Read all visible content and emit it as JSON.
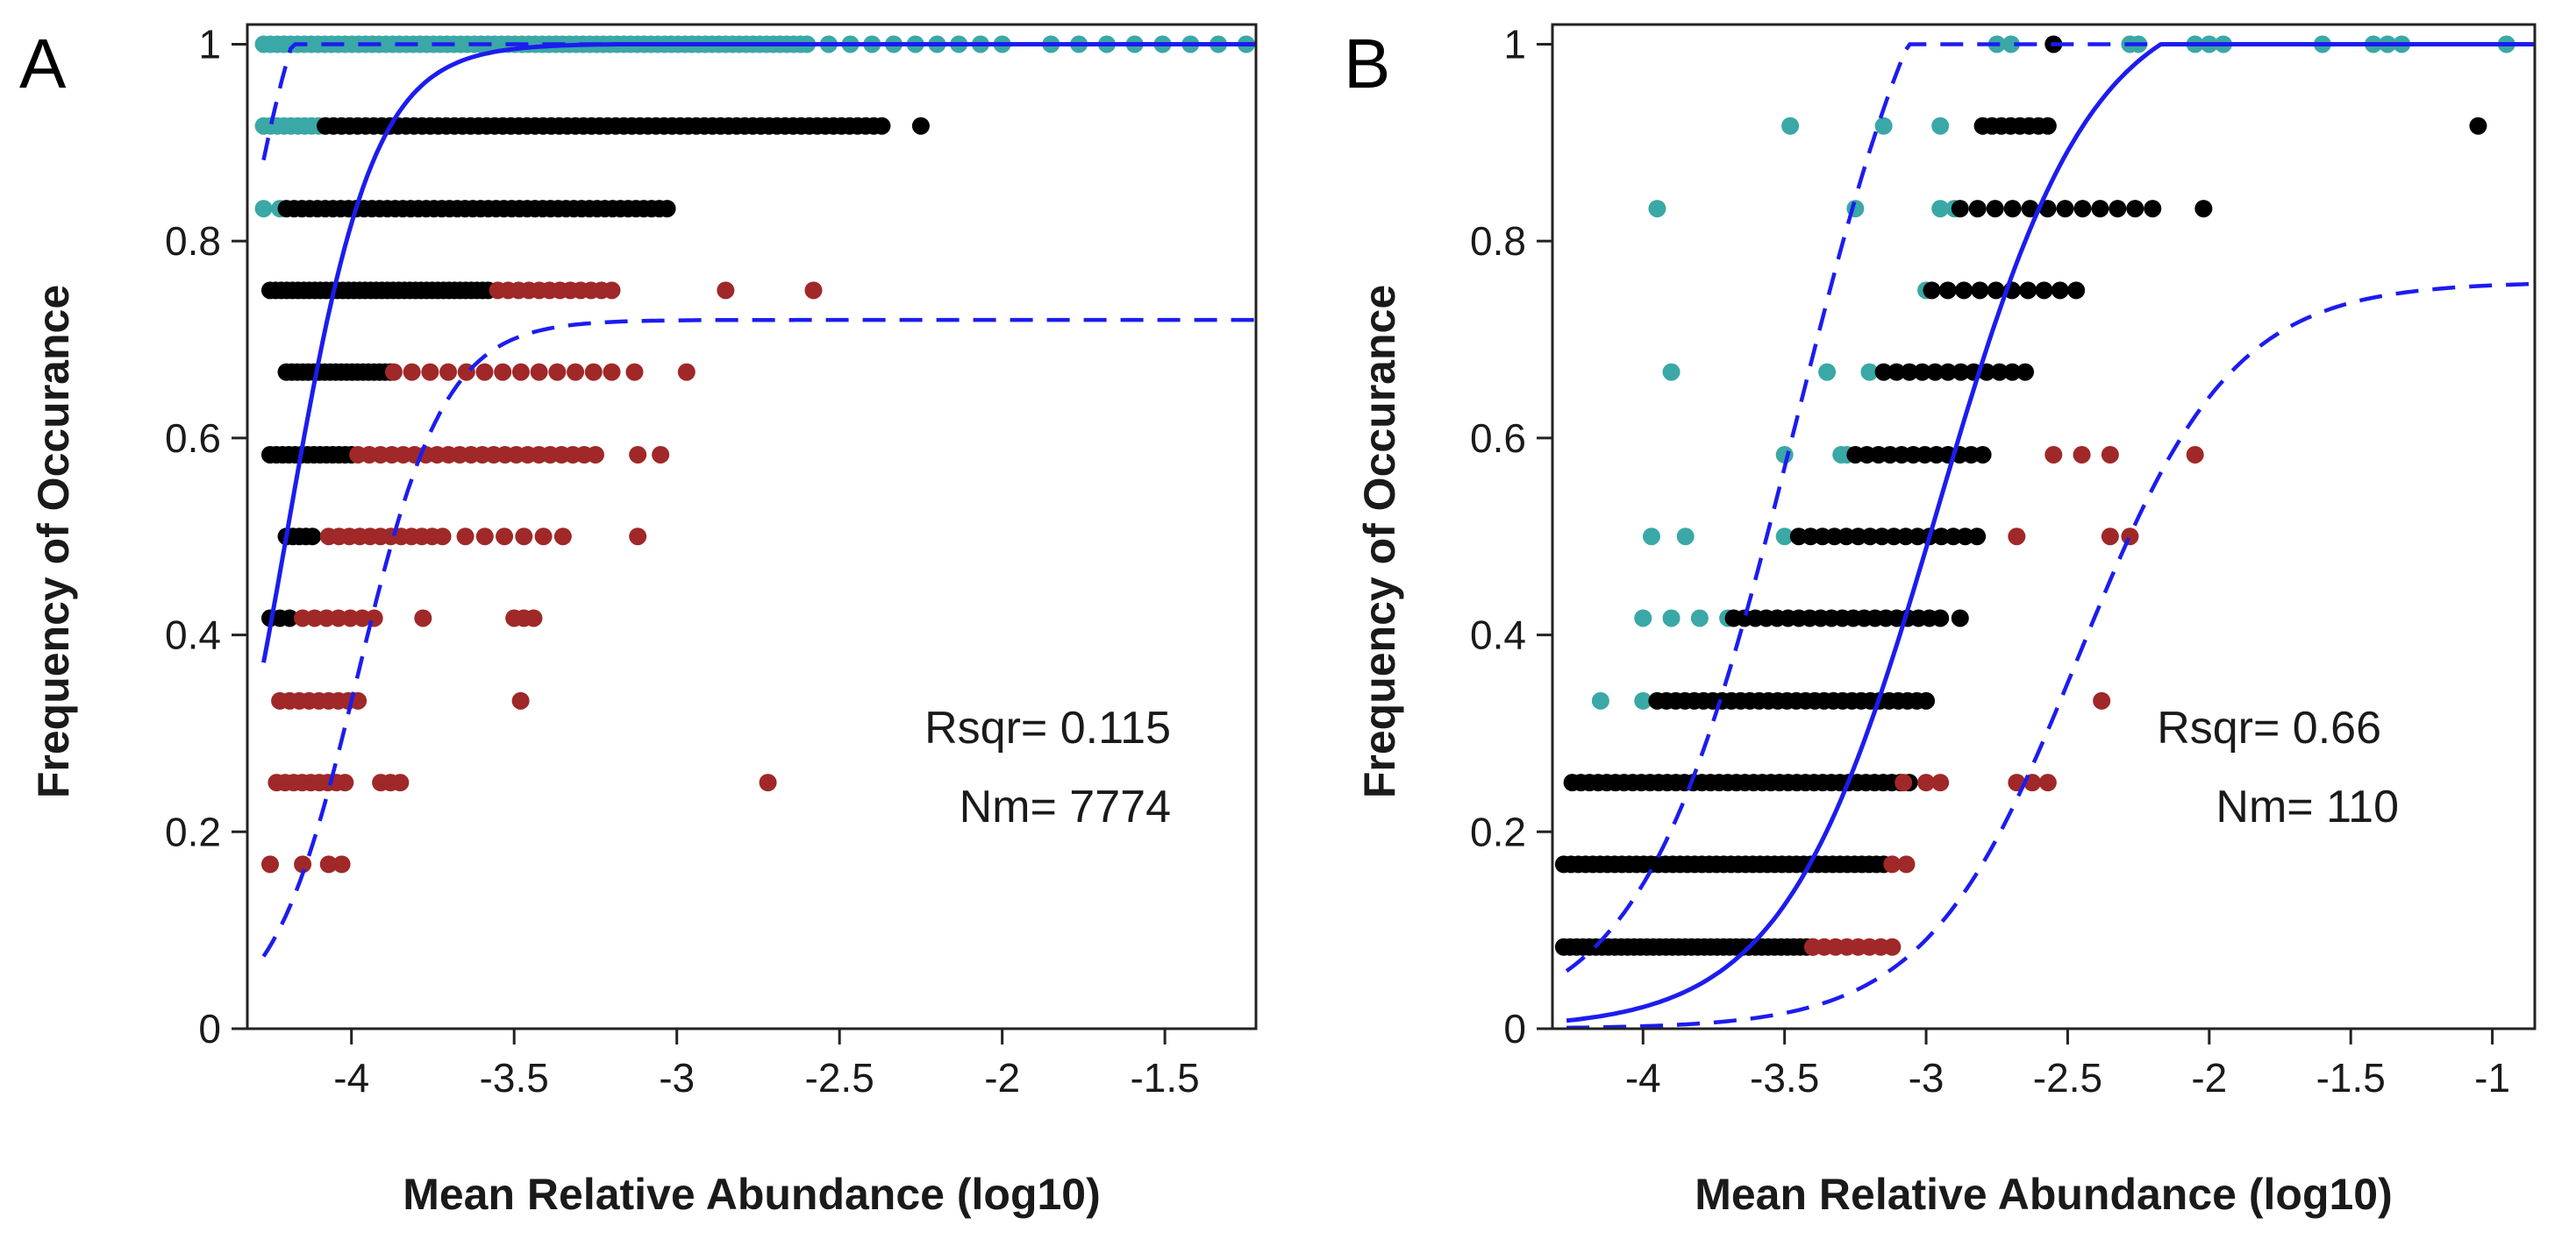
{
  "colors": {
    "above": "#3aa8a6",
    "neutral": "#000000",
    "below": "#a02828",
    "fit": "#1c1cf0"
  },
  "chart_data": [
    {
      "type": "scatter",
      "panel_label": "A",
      "xlabel": "Mean Relative Abundance (log10)",
      "ylabel": "Frequency of Occurance",
      "xlim": [
        -4.32,
        -1.22
      ],
      "ylim": [
        0,
        1.02
      ],
      "xticks": [
        -4,
        -3.5,
        -3,
        -2.5,
        -2,
        -1.5
      ],
      "xtick_labels": [
        "-4",
        "-3.5",
        "-3",
        "-2.5",
        "-2",
        "-1.5"
      ],
      "yticks": [
        0,
        0.2,
        0.4,
        0.6,
        0.8,
        1
      ],
      "ytick_labels": [
        "0",
        "0.2",
        "0.4",
        "0.6",
        "0.8",
        "1"
      ],
      "annotations": {
        "rsqr": "Rsqr= 0.115",
        "nm": "Nm= 7774"
      },
      "fit": {
        "m": 0.935,
        "x0": -4.2,
        "k": 7.5,
        "ci_shift": 0.22,
        "x_from": -4.27,
        "x_to": -1.22
      },
      "series": [
        {
          "name": "above",
          "color_key": "above",
          "clusters": [
            {
              "y": 1,
              "x_from": -4.27,
              "x_to": -2.62,
              "n": 80
            },
            {
              "y": 1,
              "x_from": -2.6,
              "x_to": -2.0,
              "n": 10
            },
            {
              "y": 1,
              "x_from": -1.85,
              "x_to": -1.25,
              "n": 8
            },
            {
              "y": 0.917,
              "x_from": -4.27,
              "x_to": -4.08,
              "n": 10
            },
            {
              "y": 0.833,
              "x_from": -4.27,
              "x_to": -4.22,
              "n": 2
            }
          ]
        },
        {
          "name": "neutral",
          "color_key": "neutral",
          "clusters": [
            {
              "y": 0.917,
              "x_from": -4.08,
              "x_to": -2.37,
              "n": 70
            },
            {
              "y": 0.917,
              "x_from": -2.25,
              "x_to": -2.25,
              "n": 1
            },
            {
              "y": 0.833,
              "x_from": -4.2,
              "x_to": -3.03,
              "n": 50
            },
            {
              "y": 0.75,
              "x_from": -4.25,
              "x_to": -3.58,
              "n": 40
            },
            {
              "y": 0.667,
              "x_from": -4.2,
              "x_to": -3.88,
              "n": 20
            },
            {
              "y": 0.583,
              "x_from": -4.25,
              "x_to": -4.0,
              "n": 14
            },
            {
              "y": 0.5,
              "x_from": -4.2,
              "x_to": -4.12,
              "n": 5
            },
            {
              "y": 0.417,
              "x_from": -4.25,
              "x_to": -4.19,
              "n": 3
            }
          ]
        },
        {
          "name": "below",
          "color_key": "below",
          "clusters": [
            {
              "y": 0.75,
              "x_from": -3.55,
              "x_to": -3.2,
              "n": 12
            },
            {
              "y": 0.75,
              "x_from": -2.85,
              "x_to": -2.58,
              "n": 2
            },
            {
              "y": 0.667,
              "x_from": -3.87,
              "x_to": -3.2,
              "n": 13
            },
            {
              "y": 0.667,
              "x_from": -3.13,
              "x_to": -2.97,
              "n": 2
            },
            {
              "y": 0.583,
              "x_from": -3.98,
              "x_to": -3.25,
              "n": 22
            },
            {
              "y": 0.583,
              "x_from": -3.12,
              "x_to": -3.05,
              "n": 2
            },
            {
              "y": 0.5,
              "x_from": -4.07,
              "x_to": -3.72,
              "n": 12
            },
            {
              "y": 0.5,
              "x_from": -3.65,
              "x_to": -3.35,
              "n": 6
            },
            {
              "y": 0.5,
              "x_from": -3.12,
              "x_to": -3.12,
              "n": 1
            },
            {
              "y": 0.417,
              "x_from": -4.15,
              "x_to": -3.93,
              "n": 7
            },
            {
              "y": 0.417,
              "x_from": -3.78,
              "x_to": -3.78,
              "n": 1
            },
            {
              "y": 0.417,
              "x_from": -3.5,
              "x_to": -3.44,
              "n": 3
            },
            {
              "y": 0.333,
              "x_from": -4.22,
              "x_to": -3.98,
              "n": 9
            },
            {
              "y": 0.333,
              "x_from": -3.48,
              "x_to": -3.48,
              "n": 1
            },
            {
              "y": 0.25,
              "x_from": -4.23,
              "x_to": -4.02,
              "n": 9
            },
            {
              "y": 0.25,
              "x_from": -3.91,
              "x_to": -3.85,
              "n": 3
            },
            {
              "y": 0.25,
              "x_from": -2.72,
              "x_to": -2.72,
              "n": 1
            },
            {
              "y": 0.167,
              "x_from": -4.25,
              "x_to": -4.25,
              "n": 1
            },
            {
              "y": 0.167,
              "x_from": -4.15,
              "x_to": -4.15,
              "n": 1
            },
            {
              "y": 0.167,
              "x_from": -4.07,
              "x_to": -4.03,
              "n": 2
            }
          ]
        }
      ]
    },
    {
      "type": "scatter",
      "panel_label": "B",
      "xlabel": "Mean Relative Abundance (log10)",
      "ylabel": "Frequency of Occurance",
      "xlim": [
        -4.32,
        -0.85
      ],
      "ylim": [
        0,
        1.02
      ],
      "xticks": [
        -4,
        -3.5,
        -3,
        -2.5,
        -2,
        -1.5,
        -1
      ],
      "xtick_labels": [
        "-4",
        "-3.5",
        "-3",
        "-2.5",
        "-2",
        "-1.5",
        "-1"
      ],
      "yticks": [
        0,
        0.2,
        0.4,
        0.6,
        0.8,
        1
      ],
      "ytick_labels": [
        "0",
        "0.2",
        "0.4",
        "0.6",
        "0.8",
        "1"
      ],
      "annotations": {
        "rsqr": "Rsqr= 0.66",
        "nm": "Nm= 110"
      },
      "fit": {
        "m": 0.985,
        "x0": -2.96,
        "k": 3.7,
        "ci_shift": 0.5,
        "x_from": -4.27,
        "x_to": -0.85
      },
      "series": [
        {
          "name": "above",
          "color_key": "above",
          "clusters": [
            {
              "y": 1,
              "x_from": -2.75,
              "x_to": -2.7,
              "n": 2
            },
            {
              "y": 1,
              "x_from": -2.28,
              "x_to": -2.25,
              "n": 2
            },
            {
              "y": 1,
              "x_from": -2.05,
              "x_to": -1.95,
              "n": 3
            },
            {
              "y": 1,
              "x_from": -1.6,
              "x_to": -1.6,
              "n": 1
            },
            {
              "y": 1,
              "x_from": -1.42,
              "x_to": -1.32,
              "n": 3
            },
            {
              "y": 1,
              "x_from": -0.95,
              "x_to": -0.95,
              "n": 1
            },
            {
              "y": 0.917,
              "x_from": -3.48,
              "x_to": -3.48,
              "n": 1
            },
            {
              "y": 0.917,
              "x_from": -3.15,
              "x_to": -3.15,
              "n": 1
            },
            {
              "y": 0.917,
              "x_from": -2.95,
              "x_to": -2.95,
              "n": 1
            },
            {
              "y": 0.917,
              "x_from": -2.8,
              "x_to": -2.8,
              "n": 1
            },
            {
              "y": 0.833,
              "x_from": -3.95,
              "x_to": -3.95,
              "n": 1
            },
            {
              "y": 0.833,
              "x_from": -3.25,
              "x_to": -3.25,
              "n": 1
            },
            {
              "y": 0.833,
              "x_from": -2.95,
              "x_to": -2.9,
              "n": 2
            },
            {
              "y": 0.75,
              "x_from": -3.0,
              "x_to": -3.0,
              "n": 1
            },
            {
              "y": 0.667,
              "x_from": -3.9,
              "x_to": -3.9,
              "n": 1
            },
            {
              "y": 0.667,
              "x_from": -3.35,
              "x_to": -3.2,
              "n": 2
            },
            {
              "y": 0.583,
              "x_from": -3.5,
              "x_to": -3.5,
              "n": 1
            },
            {
              "y": 0.583,
              "x_from": -3.3,
              "x_to": -3.28,
              "n": 2
            },
            {
              "y": 0.5,
              "x_from": -3.97,
              "x_to": -3.85,
              "n": 2
            },
            {
              "y": 0.5,
              "x_from": -3.5,
              "x_to": -3.5,
              "n": 1
            },
            {
              "y": 0.417,
              "x_from": -4.0,
              "x_to": -3.7,
              "n": 4
            },
            {
              "y": 0.333,
              "x_from": -4.15,
              "x_to": -4.0,
              "n": 2
            }
          ]
        },
        {
          "name": "neutral",
          "color_key": "neutral",
          "clusters": [
            {
              "y": 1,
              "x_from": -2.55,
              "x_to": -2.55,
              "n": 1
            },
            {
              "y": 0.917,
              "x_from": -2.8,
              "x_to": -2.57,
              "n": 8
            },
            {
              "y": 0.917,
              "x_from": -1.05,
              "x_to": -1.05,
              "n": 1
            },
            {
              "y": 0.833,
              "x_from": -2.88,
              "x_to": -2.2,
              "n": 12
            },
            {
              "y": 0.833,
              "x_from": -2.02,
              "x_to": -2.02,
              "n": 1
            },
            {
              "y": 0.75,
              "x_from": -2.98,
              "x_to": -2.47,
              "n": 10
            },
            {
              "y": 0.667,
              "x_from": -3.15,
              "x_to": -2.65,
              "n": 12
            },
            {
              "y": 0.583,
              "x_from": -3.25,
              "x_to": -2.8,
              "n": 12
            },
            {
              "y": 0.5,
              "x_from": -3.45,
              "x_to": -2.82,
              "n": 16
            },
            {
              "y": 0.417,
              "x_from": -3.68,
              "x_to": -2.95,
              "n": 20
            },
            {
              "y": 0.417,
              "x_from": -2.88,
              "x_to": -2.88,
              "n": 1
            },
            {
              "y": 0.333,
              "x_from": -3.95,
              "x_to": -3.0,
              "n": 30
            },
            {
              "y": 0.25,
              "x_from": -4.25,
              "x_to": -3.06,
              "n": 40
            },
            {
              "y": 0.167,
              "x_from": -4.28,
              "x_to": -3.15,
              "n": 45
            },
            {
              "y": 0.083,
              "x_from": -4.28,
              "x_to": -3.4,
              "n": 40
            }
          ]
        },
        {
          "name": "below",
          "color_key": "below",
          "clusters": [
            {
              "y": 0.583,
              "x_from": -2.55,
              "x_to": -2.35,
              "n": 3
            },
            {
              "y": 0.583,
              "x_from": -2.05,
              "x_to": -2.05,
              "n": 1
            },
            {
              "y": 0.5,
              "x_from": -2.68,
              "x_to": -2.68,
              "n": 1
            },
            {
              "y": 0.5,
              "x_from": -2.35,
              "x_to": -2.28,
              "n": 2
            },
            {
              "y": 0.333,
              "x_from": -2.38,
              "x_to": -2.38,
              "n": 1
            },
            {
              "y": 0.25,
              "x_from": -3.08,
              "x_to": -3.0,
              "n": 2
            },
            {
              "y": 0.25,
              "x_from": -2.95,
              "x_to": -2.95,
              "n": 1
            },
            {
              "y": 0.25,
              "x_from": -2.68,
              "x_to": -2.57,
              "n": 3
            },
            {
              "y": 0.167,
              "x_from": -3.12,
              "x_to": -3.07,
              "n": 2
            },
            {
              "y": 0.083,
              "x_from": -3.4,
              "x_to": -3.12,
              "n": 8
            }
          ]
        }
      ]
    }
  ]
}
